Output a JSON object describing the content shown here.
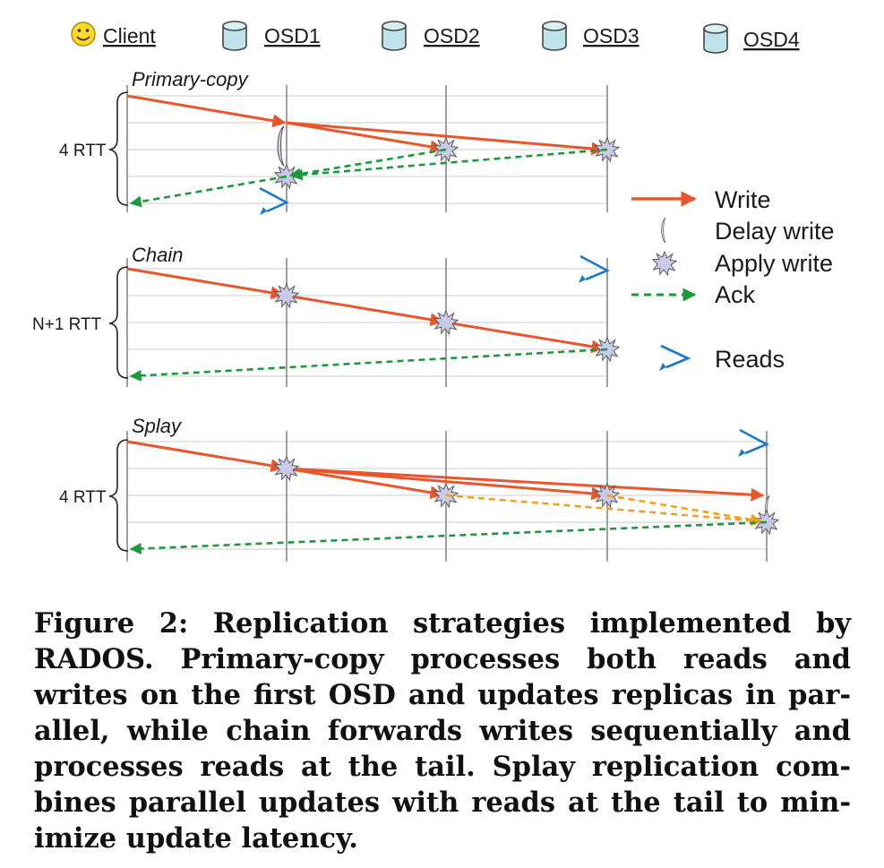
{
  "header": {
    "client": "Client",
    "osds": [
      "OSD1",
      "OSD2",
      "OSD3",
      "OSD4"
    ]
  },
  "panels": [
    {
      "title": "Primary-copy",
      "latency": "4 RTT"
    },
    {
      "title": "Chain",
      "latency": "N+1 RTT"
    },
    {
      "title": "Splay",
      "latency": "4 RTT"
    }
  ],
  "legend": {
    "write": "Write",
    "delay": "Delay write",
    "apply": "Apply write",
    "ack": "Ack",
    "reads": "Reads"
  },
  "colors": {
    "write": "#e8562a",
    "ack": "#1a9a3a",
    "splay_ack": "#f0a020",
    "reads": "#1a7ac8",
    "star": "#c9c9e8",
    "cylinder": "#bfe3ea"
  },
  "caption": "Figure 2: Replication strategies implemented by RADOS. Primary-copy processes both reads and writes on the first OSD and updates replicas in par­allel, while chain forwards writes sequentially and processes reads at the tail. Splay replication com­bines parallel updates with reads at the tail to min­imize update latency."
}
